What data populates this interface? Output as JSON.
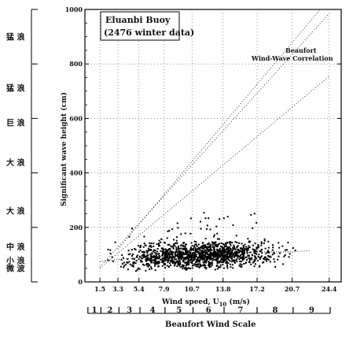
{
  "chart_data": {
    "type": "scatter",
    "title_box": [
      "Eluanbi Buoy",
      "(2476 winter data)"
    ],
    "xlabel": "Wind speed, U",
    "xlabel_sub": "10",
    "xlabel_unit": " (m/s)",
    "ylabel": "Significant wave height (cm)",
    "xlim": [
      0,
      25.6
    ],
    "ylim": [
      0,
      1000
    ],
    "x_ticks": [
      "1.5",
      "3.3",
      "5.4",
      "7.9",
      "10.7",
      "13.8",
      "17.2",
      "20.7",
      "24.4"
    ],
    "y_ticks": [
      "0",
      "200",
      "400",
      "600",
      "800",
      "1000"
    ],
    "grid": true,
    "annotation": [
      "Beaufort",
      "Wind-Wave Correlation"
    ],
    "correlation_lines": [
      {
        "x": [
          1.5,
          24.4
        ],
        "y": [
          55,
          985
        ]
      },
      {
        "x": [
          1.5,
          24.4
        ],
        "y": [
          50,
          755
        ]
      },
      {
        "x": [
          3.3,
          23.5
        ],
        "y": [
          120,
          1000
        ]
      }
    ],
    "median_trend": {
      "x": [
        1.5,
        5.4,
        10.7,
        17.2,
        20.7,
        22.5
      ],
      "y": [
        75,
        90,
        100,
        110,
        110,
        115
      ]
    },
    "point_cloud": {
      "count": 2476,
      "x_range": [
        1.0,
        22.0
      ],
      "y_typical_range": [
        40,
        150
      ],
      "y_max": 290,
      "x_mode": 12.0
    },
    "beaufort_scale": {
      "label": "Beaufort Wind Scale",
      "numbers": [
        "1",
        "2",
        "3",
        "4",
        "5",
        "6",
        "7",
        "8",
        "9"
      ],
      "boundaries": [
        0.3,
        1.6,
        3.4,
        5.5,
        8.0,
        10.8,
        13.9,
        17.2,
        20.8,
        24.5
      ]
    },
    "sea_state_labels": [
      "猛 浪",
      "猛 浪",
      "巨 浪",
      "大 浪",
      "大 浪",
      "中 浪",
      "小 浪",
      "微 波"
    ],
    "sea_state_levels": [
      1000,
      800,
      600,
      400,
      200,
      0
    ]
  }
}
